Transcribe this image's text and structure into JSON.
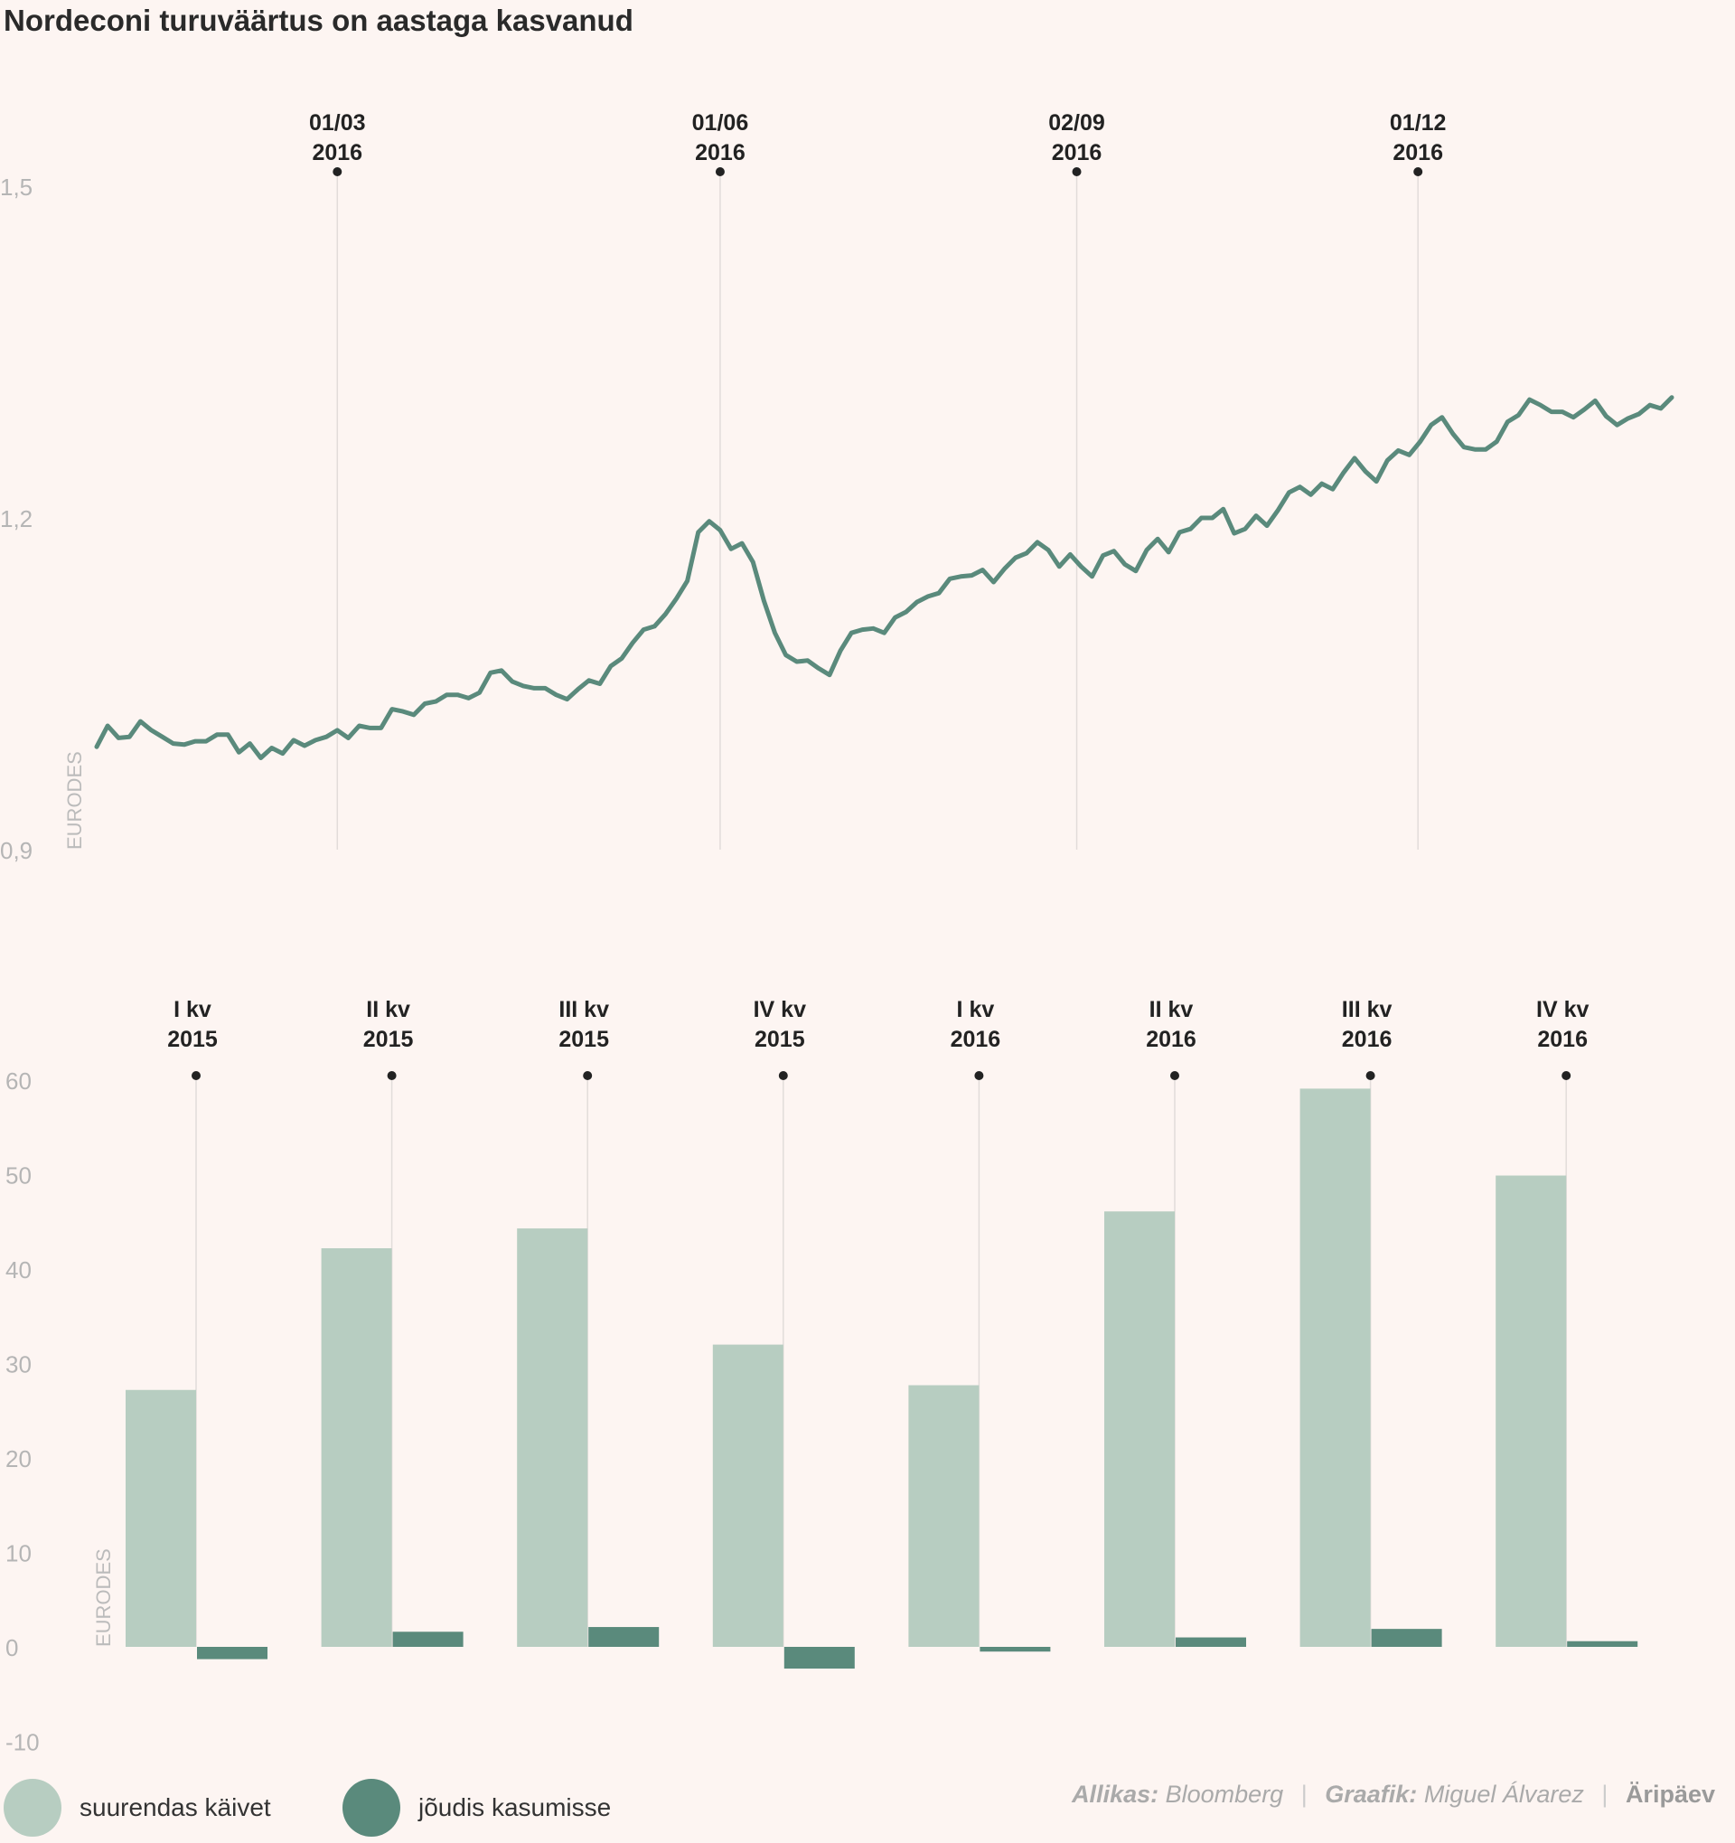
{
  "title": "Nordeconi turuväärtus on aastaga kasvanud",
  "colors": {
    "line": "#5a8a7c",
    "bar_light": "#b7cdc1",
    "bar_dark": "#5a8a7c",
    "background": "#fdf5f2"
  },
  "chart_data": [
    {
      "type": "line",
      "ylabel": "EURODES",
      "ylim": [
        0.9,
        1.5
      ],
      "yticks": [
        "1,5",
        "1,2",
        "0,9"
      ],
      "ytick_values": [
        1.5,
        1.2,
        0.9
      ],
      "annotations": [
        {
          "line1": "01/03",
          "line2": "2016",
          "x": 22
        },
        {
          "line1": "01/06",
          "line2": "2016",
          "x": 57
        },
        {
          "line1": "02/09",
          "line2": "2016",
          "x": 89.6
        },
        {
          "line1": "01/12",
          "line2": "2016",
          "x": 120.8
        }
      ],
      "series": [
        {
          "values": [
            0.993,
            1.012,
            1.001,
            1.002,
            1.016,
            1.008,
            1.002,
            0.996,
            0.995,
            0.998,
            0.998,
            1.004,
            1.004,
            0.988,
            0.996,
            0.983,
            0.992,
            0.987,
            0.999,
            0.994,
            0.999,
            1.002,
            1.008,
            1.001,
            1.012,
            1.01,
            1.01,
            1.027,
            1.025,
            1.022,
            1.032,
            1.034,
            1.04,
            1.04,
            1.037,
            1.042,
            1.06,
            1.062,
            1.052,
            1.048,
            1.046,
            1.046,
            1.04,
            1.036,
            1.045,
            1.053,
            1.05,
            1.066,
            1.073,
            1.087,
            1.099,
            1.102,
            1.113,
            1.127,
            1.143,
            1.187,
            1.197,
            1.189,
            1.172,
            1.177,
            1.16,
            1.125,
            1.096,
            1.076,
            1.07,
            1.071,
            1.064,
            1.058,
            1.08,
            1.096,
            1.099,
            1.1,
            1.096,
            1.11,
            1.115,
            1.124,
            1.129,
            1.132,
            1.145,
            1.147,
            1.148,
            1.153,
            1.142,
            1.154,
            1.164,
            1.168,
            1.178,
            1.171,
            1.156,
            1.167,
            1.156,
            1.147,
            1.166,
            1.17,
            1.158,
            1.152,
            1.171,
            1.181,
            1.169,
            1.187,
            1.19,
            1.2,
            1.2,
            1.208,
            1.186,
            1.19,
            1.202,
            1.193,
            1.207,
            1.223,
            1.228,
            1.221,
            1.231,
            1.226,
            1.241,
            1.254,
            1.242,
            1.233,
            1.252,
            1.261,
            1.257,
            1.269,
            1.284,
            1.291,
            1.276,
            1.264,
            1.262,
            1.262,
            1.269,
            1.287,
            1.293,
            1.307,
            1.302,
            1.296,
            1.296,
            1.291,
            1.298,
            1.306,
            1.292,
            1.284,
            1.29,
            1.294,
            1.302,
            1.299,
            1.309
          ]
        }
      ]
    },
    {
      "type": "bar",
      "ylabel": "EURODES",
      "ylim": [
        -10,
        60
      ],
      "yticks": [
        "60",
        "50",
        "40",
        "30",
        "20",
        "10",
        "0",
        "-10"
      ],
      "ytick_values": [
        60,
        50,
        40,
        30,
        20,
        10,
        0,
        -10
      ],
      "categories": [
        {
          "q": "I kv",
          "year": "2015"
        },
        {
          "q": "II kv",
          "year": "2015"
        },
        {
          "q": "III kv",
          "year": "2015"
        },
        {
          "q": "IV kv",
          "year": "2015"
        },
        {
          "q": "I kv",
          "year": "2016"
        },
        {
          "q": "II kv",
          "year": "2016"
        },
        {
          "q": "III kv",
          "year": "2016"
        },
        {
          "q": "IV kv",
          "year": "2016"
        }
      ],
      "series": [
        {
          "name": "suurendas käivet",
          "values": [
            27.2,
            42.2,
            44.3,
            32.0,
            27.7,
            46.1,
            59.1,
            49.9
          ]
        },
        {
          "name": "jõudis kasumisse",
          "values": [
            -1.3,
            1.6,
            2.1,
            -2.3,
            -0.5,
            1.0,
            1.9,
            0.6
          ]
        }
      ]
    }
  ],
  "legend": [
    {
      "label": "suurendas käivet",
      "color": "#b7cdc1"
    },
    {
      "label": "jõudis kasumisse",
      "color": "#5a8a7c"
    }
  ],
  "credits": {
    "source_label": "Allikas:",
    "source": "Bloomberg",
    "graphic_label": "Graafik:",
    "graphic": "Miguel Álvarez",
    "brand": "Äripäev"
  }
}
